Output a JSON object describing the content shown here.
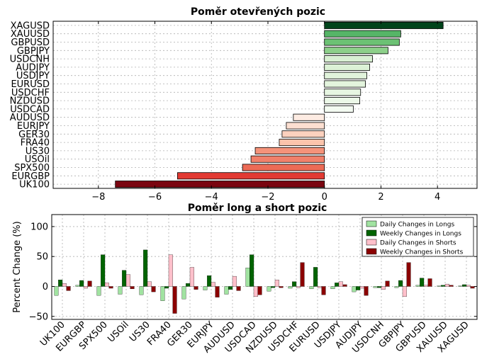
{
  "chart_data": [
    {
      "type": "bar",
      "orientation": "horizontal",
      "title": "Poměr otevřených pozic",
      "categories": [
        "XAGUSD",
        "XAUUSD",
        "GBPUSD",
        "GBPJPY",
        "USDCNH",
        "AUDJPY",
        "USDJPY",
        "EURUSD",
        "USDCHF",
        "NZDUSD",
        "USDCAD",
        "AUDUSD",
        "EURJPY",
        "GER30",
        "FRA40",
        "US30",
        "USOil",
        "SPX500",
        "EURGBP",
        "UK100"
      ],
      "values": [
        4.2,
        2.7,
        2.65,
        2.25,
        1.7,
        1.6,
        1.5,
        1.45,
        1.28,
        1.25,
        1.02,
        -1.1,
        -1.35,
        -1.5,
        -1.6,
        -2.45,
        -2.6,
        -2.9,
        -5.2,
        -7.4
      ],
      "colors": [
        "#00441b",
        "#56b567",
        "#6cc174",
        "#8dd08a",
        "#d9f0d3",
        "#dcf2d6",
        "#e1f3db",
        "#e3f4dd",
        "#e7f6e2",
        "#ecf8e8",
        "#f4fbf2",
        "#fdebe2",
        "#fcdfd1",
        "#fcd1be",
        "#fbc4ac",
        "#f5937a",
        "#f1806a",
        "#ec6b56",
        "#e23a33",
        "#7a0510"
      ],
      "xlim": [
        -9.6,
        5.4
      ],
      "xticks": [
        -8,
        -6,
        -4,
        -2,
        0,
        2,
        4
      ],
      "xtick_labels": [
        "−8",
        "−6",
        "−4",
        "−2",
        "0",
        "2",
        "4"
      ],
      "grid": true
    },
    {
      "type": "bar",
      "title": "Poměr long a short pozic",
      "ylabel": "Percent Change (%)",
      "ylim": [
        -55,
        120
      ],
      "yticks": [
        -50,
        0,
        50,
        100
      ],
      "categories": [
        "UK100",
        "EURGBP",
        "SPX500",
        "USOil",
        "US30",
        "FRA40",
        "GER30",
        "EURJPY",
        "AUDUSD",
        "USDCAD",
        "NZDUSD",
        "USDCHF",
        "EURUSD",
        "USDJPY",
        "AUDJPY",
        "USDCNH",
        "GBPJPY",
        "GBPUSD",
        "XAUUSD",
        "XAGUSD"
      ],
      "series": [
        {
          "name": "Daily Changes in Longs",
          "color": "#a1e3a1",
          "values": [
            -15,
            2,
            -15,
            -13,
            -14,
            -24,
            -21,
            -6,
            -13,
            31,
            -8,
            -3,
            -4,
            -4,
            -9,
            -2,
            -2,
            2,
            1,
            1
          ]
        },
        {
          "name": "Weekly Changes in Longs",
          "color": "#006400",
          "values": [
            11,
            10,
            53,
            27,
            61,
            -3,
            5,
            18,
            -5,
            53,
            -2,
            8,
            32,
            6,
            -6,
            -2,
            10,
            14,
            2,
            3
          ]
        },
        {
          "name": "Daily Changes in Shorts",
          "color": "#ffc0cb",
          "values": [
            5,
            -3,
            6,
            20,
            8,
            53,
            32,
            7,
            17,
            -17,
            11,
            -2,
            -2,
            8,
            -3,
            -5,
            -17,
            2,
            4,
            2
          ]
        },
        {
          "name": "Weekly Changes in Shorts",
          "color": "#8b0000",
          "values": [
            -7,
            9,
            -3,
            -4,
            -9,
            -45,
            -5,
            -18,
            -7,
            -14,
            -2,
            40,
            -14,
            3,
            -15,
            9,
            40,
            13,
            2,
            -3
          ]
        }
      ],
      "legend_position": "top-right",
      "grid": true
    }
  ]
}
